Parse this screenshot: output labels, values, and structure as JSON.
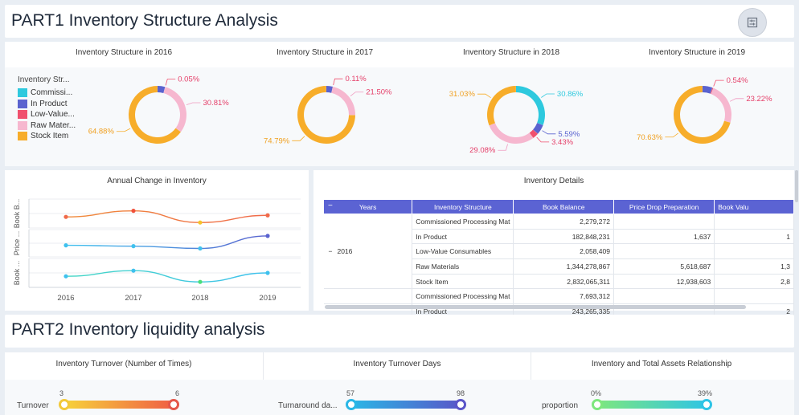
{
  "part1": {
    "title": "PART1  Inventory Structure Analysis"
  },
  "part2": {
    "title": "PART2  Inventory liquidity analysis"
  },
  "settings_button": {
    "icon": "filter-settings-icon"
  },
  "legend": {
    "title": "Inventory Str...",
    "items": [
      {
        "label": "Commissi...",
        "color": "#2ec9de"
      },
      {
        "label": "In Product",
        "color": "#5a63cf"
      },
      {
        "label": "Low-Value...",
        "color": "#f0506e"
      },
      {
        "label": "Raw Mater...",
        "color": "#f6b7cf"
      },
      {
        "label": "Stock Item",
        "color": "#f7ad2a"
      }
    ]
  },
  "chart_data": [
    {
      "type": "pie",
      "variant": "donut",
      "title": "Inventory Structure in 2016",
      "slices": [
        {
          "name": "Commissioned",
          "value": 0,
          "label": ""
        },
        {
          "name": "In Product",
          "value": 4.26,
          "label": ""
        },
        {
          "name": "Low-Value",
          "value": 0.05,
          "label": "0.05%"
        },
        {
          "name": "Raw Materials",
          "value": 30.81,
          "label": "30.81%"
        },
        {
          "name": "Stock Item",
          "value": 64.88,
          "label": "64.88%"
        }
      ]
    },
    {
      "type": "pie",
      "variant": "donut",
      "title": "Inventory Structure in 2017",
      "slices": [
        {
          "name": "Commissioned",
          "value": 0,
          "label": ""
        },
        {
          "name": "In Product",
          "value": 3.6,
          "label": ""
        },
        {
          "name": "Low-Value",
          "value": 0.11,
          "label": "0.11%"
        },
        {
          "name": "Raw Materials",
          "value": 21.5,
          "label": "21.50%"
        },
        {
          "name": "Stock Item",
          "value": 74.79,
          "label": "74.79%"
        }
      ]
    },
    {
      "type": "pie",
      "variant": "donut",
      "title": "Inventory Structure in 2018",
      "slices": [
        {
          "name": "Commissioned",
          "value": 30.86,
          "label": "30.86%"
        },
        {
          "name": "In Product",
          "value": 5.59,
          "label": "5.59%"
        },
        {
          "name": "Low-Value",
          "value": 3.43,
          "label": "3.43%"
        },
        {
          "name": "Raw Materials",
          "value": 29.08,
          "label": "29.08%"
        },
        {
          "name": "Stock Item",
          "value": 31.03,
          "label": "31.03%"
        }
      ]
    },
    {
      "type": "pie",
      "variant": "donut",
      "title": "Inventory Structure in 2019",
      "slices": [
        {
          "name": "Commissioned",
          "value": 0,
          "label": ""
        },
        {
          "name": "In Product",
          "value": 5.61,
          "label": ""
        },
        {
          "name": "Low-Value",
          "value": 0.54,
          "label": "0.54%"
        },
        {
          "name": "Raw Materials",
          "value": 23.22,
          "label": "23.22%"
        },
        {
          "name": "Stock Item",
          "value": 70.63,
          "label": "70.63%"
        }
      ]
    },
    {
      "type": "line",
      "title": "Annual Change in Inventory",
      "categories": [
        "2016",
        "2017",
        "2018",
        "2019"
      ],
      "ylabels": [
        "Book B...",
        "Price ...",
        "Book ..."
      ],
      "series": [
        {
          "band": 0,
          "color": "#f08a3a",
          "values": [
            0.35,
            0.62,
            0.1,
            0.42
          ],
          "point_colors": [
            "#f06a4a",
            "#f0503a",
            "#f6c22a",
            "#f06a4a"
          ]
        },
        {
          "band": 1,
          "color": "#3fc1ee",
          "values": [
            0.4,
            0.36,
            0.25,
            0.85
          ],
          "point_colors": [
            "#3fc1ee",
            "#3fc1ee",
            "#3fc1ee",
            "#5a63cf"
          ]
        },
        {
          "band": 2,
          "color": "#43d6c4",
          "values": [
            0.35,
            0.6,
            0.1,
            0.5
          ],
          "point_colors": [
            "#3fc1ee",
            "#3fc1ee",
            "#4adf7a",
            "#3fc1ee"
          ]
        }
      ]
    }
  ],
  "line_panel": {
    "title": "Annual Change in Inventory"
  },
  "table": {
    "title": "Inventory Details",
    "columns": [
      "Years",
      "Inventory Structure",
      "Book Balance",
      "Price Drop Preparation",
      "Book Valu"
    ],
    "group_label": "2016",
    "rows": [
      [
        "Commissioned Processing Mat",
        "2,279,272",
        "",
        ""
      ],
      [
        "In Product",
        "182,848,231",
        "1,637",
        "1"
      ],
      [
        "Low-Value Consumables",
        "2,058,409",
        "",
        ""
      ],
      [
        "Raw Materials",
        "1,344,278,867",
        "5,618,687",
        "1,3"
      ],
      [
        "Stock Item",
        "2,832,065,311",
        "12,938,603",
        "2,8"
      ],
      [
        "Commissioned Processing Mat",
        "7,693,312",
        "",
        ""
      ],
      [
        "In Product",
        "243,265,335",
        "",
        "2"
      ]
    ]
  },
  "sliders": [
    {
      "title": "Inventory Turnover (Number of Times)",
      "label": "Turnover",
      "min": "3",
      "max": "6",
      "from": "#f7d43a",
      "to": "#ef5a45",
      "knob_l": "#f2c93a",
      "knob_r": "#e4574a"
    },
    {
      "title": "Inventory Turnover Days",
      "label": "Turnaround da...",
      "min": "57",
      "max": "98",
      "from": "#2ab7e6",
      "to": "#5a55c8",
      "knob_l": "#2ab7e6",
      "knob_r": "#5a55c8"
    },
    {
      "title": "Inventory and Total Assets Relationship",
      "label": "proportion",
      "min": "0%",
      "max": "39%",
      "from": "#7ee77e",
      "to": "#2ec4e6",
      "knob_l": "#7ee77e",
      "knob_r": "#2ec4e6"
    }
  ]
}
